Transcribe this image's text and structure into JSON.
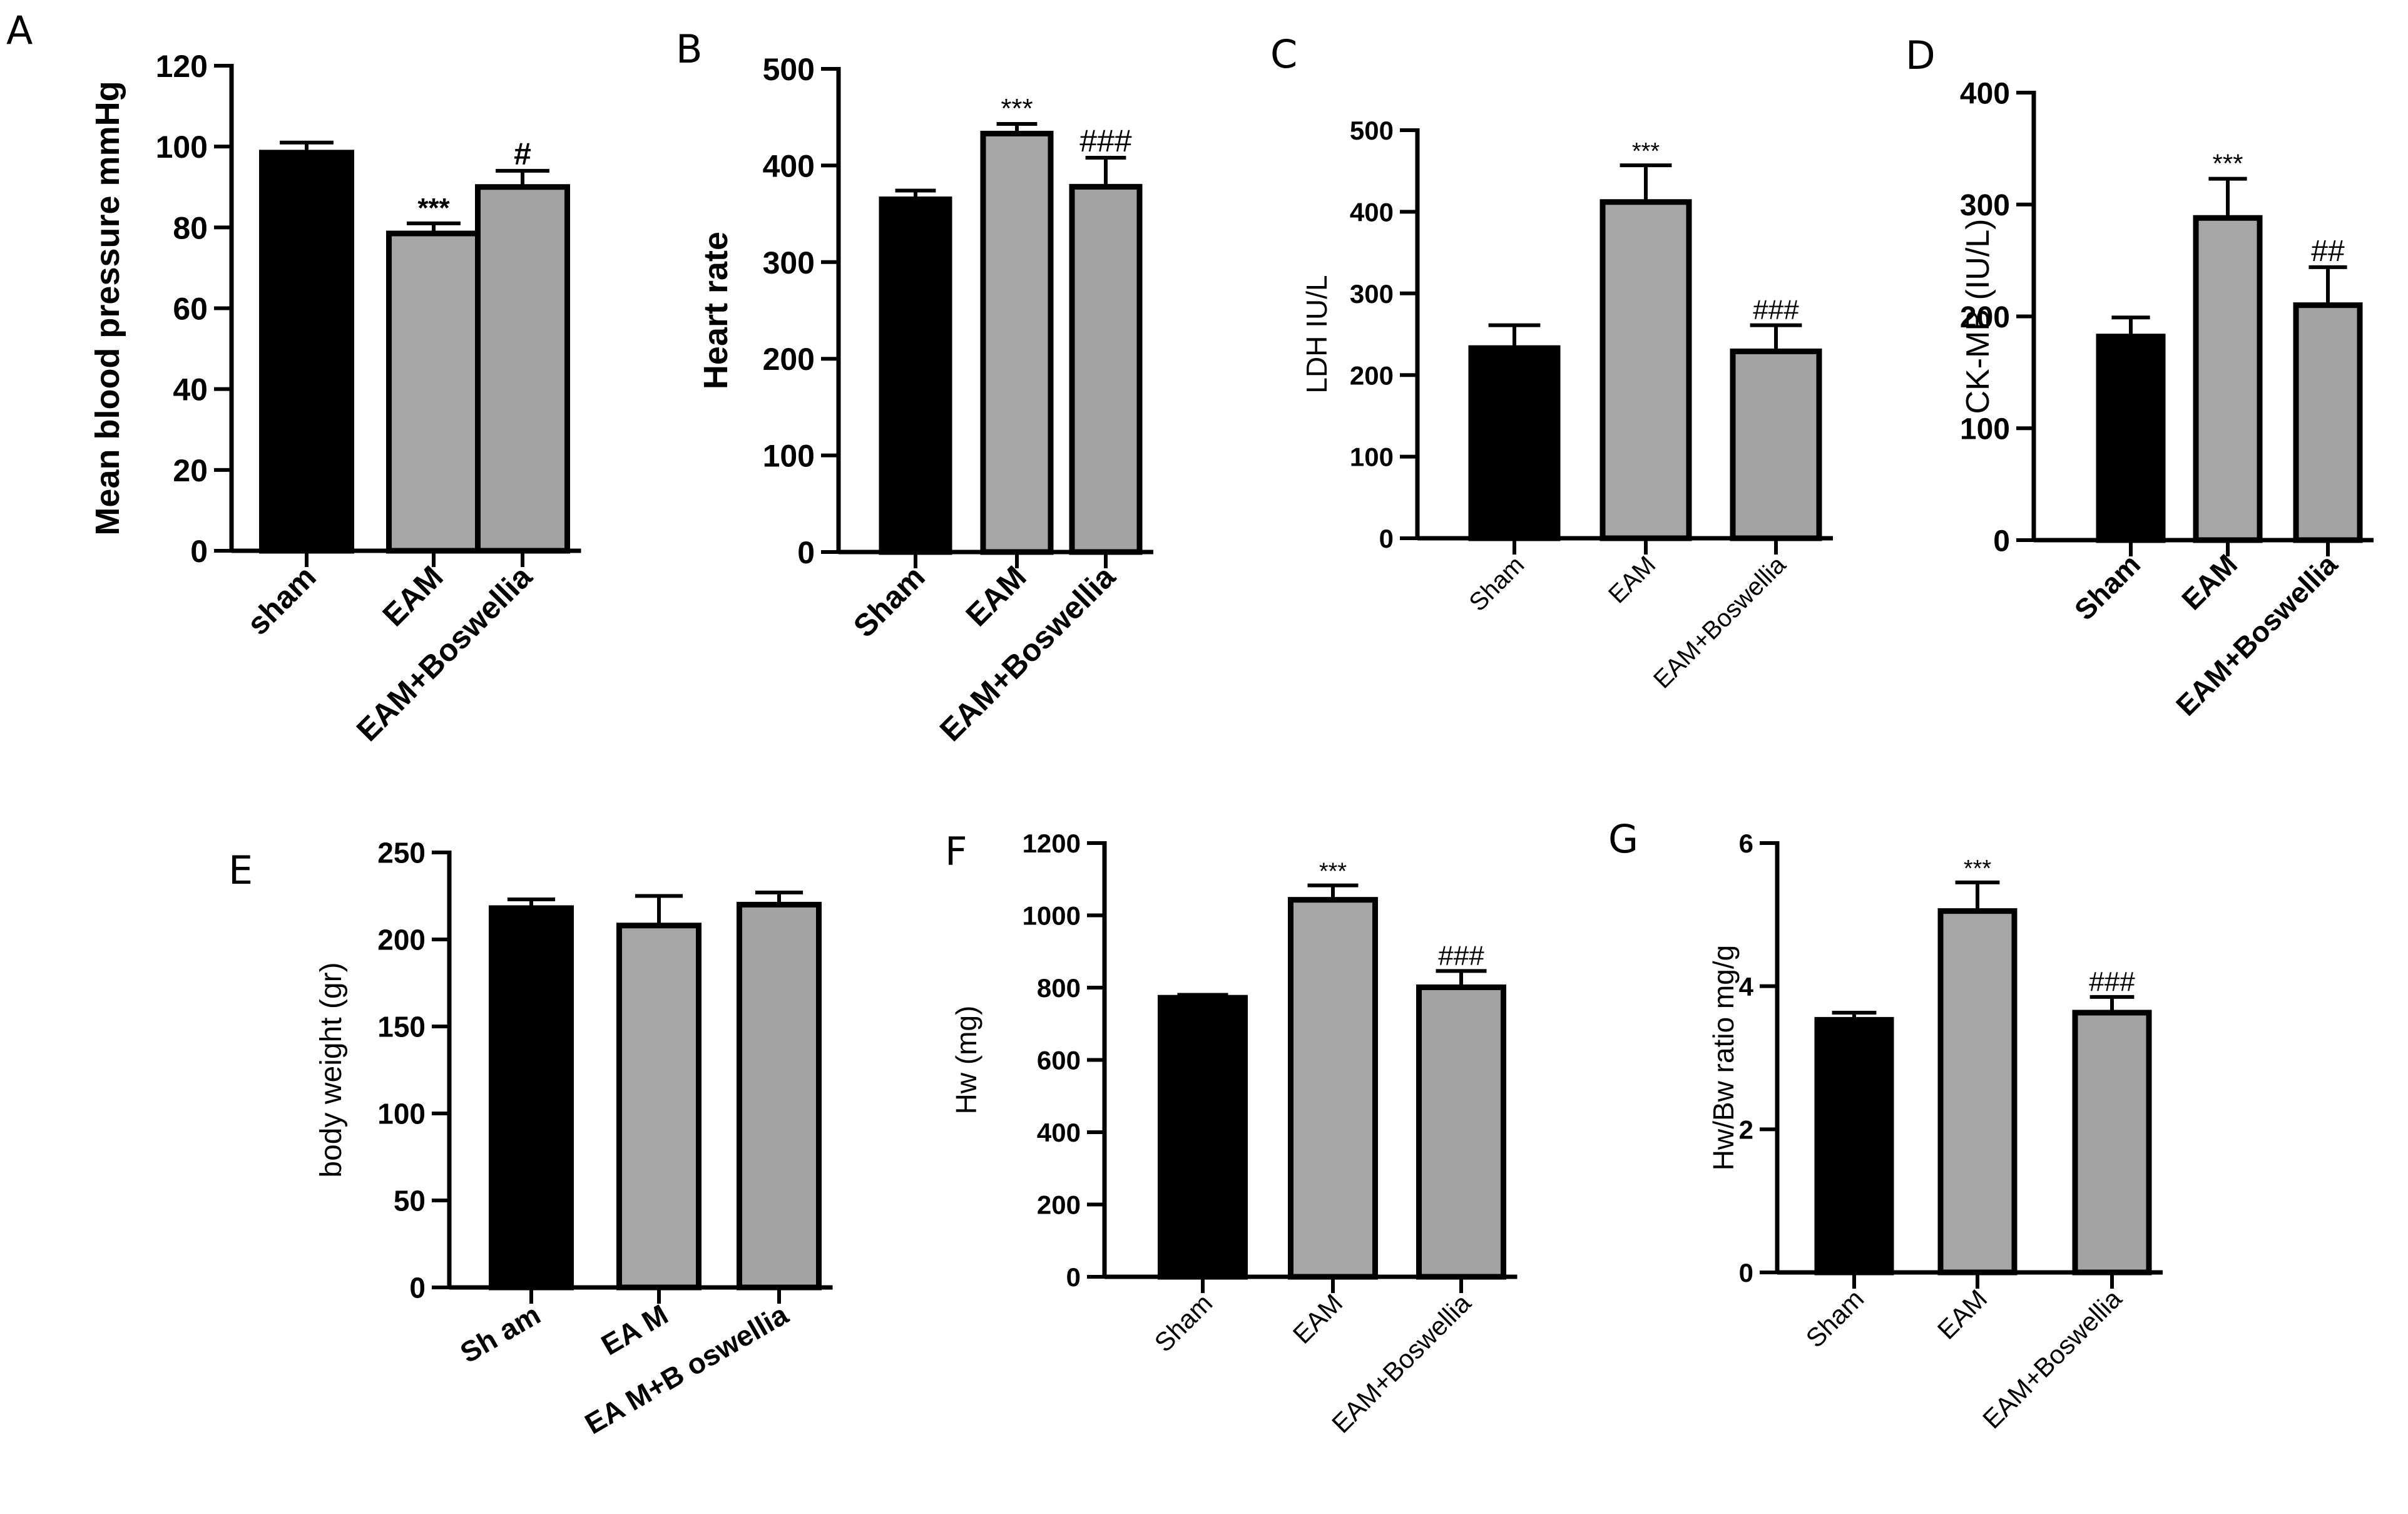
{
  "colors": {
    "sham": "#000000",
    "eam": "#a6a6a6",
    "boswellia": "#a3a3a3",
    "axis": "#000000"
  },
  "chart_data": [
    {
      "panel": "A",
      "type": "bar",
      "categories": [
        "sham",
        "EAM",
        "EAM+Boswellia"
      ],
      "values": [
        98.5,
        78.5,
        90
      ],
      "errors": [
        2.5,
        2.5,
        4
      ],
      "annotations": [
        "",
        "***",
        "#"
      ],
      "ylabel": "Mean blood pressure mmHg",
      "xlabel": "",
      "ylim": [
        0,
        120
      ],
      "yticks": [
        0,
        20,
        40,
        60,
        80,
        100,
        120
      ]
    },
    {
      "panel": "B",
      "type": "bar",
      "categories": [
        "Sham",
        "EAM",
        "EAM+Boswellia"
      ],
      "values": [
        365,
        433,
        378
      ],
      "errors": [
        9,
        10,
        30
      ],
      "annotations": [
        "",
        "***",
        "###"
      ],
      "ylabel": "Heart rate",
      "xlabel": "",
      "ylim": [
        0,
        500
      ],
      "yticks": [
        0,
        100,
        200,
        300,
        400,
        500
      ]
    },
    {
      "panel": "C",
      "type": "bar",
      "categories": [
        "Sham",
        "EAM",
        "EAM+Boswellia"
      ],
      "values": [
        233,
        412,
        229
      ],
      "errors": [
        28,
        45,
        32
      ],
      "annotations": [
        "",
        "***",
        "###"
      ],
      "ylabel": "LDH IU/L",
      "xlabel": "",
      "ylim": [
        0,
        500
      ],
      "yticks": [
        0,
        100,
        200,
        300,
        400,
        500
      ]
    },
    {
      "panel": "D",
      "type": "bar",
      "categories": [
        "Sham",
        "EAM",
        "EAM+Boswellia"
      ],
      "values": [
        182,
        288,
        210
      ],
      "errors": [
        17,
        35,
        34
      ],
      "annotations": [
        "",
        "***",
        "##"
      ],
      "ylabel": "CK-MB (IU/L)",
      "xlabel": "",
      "ylim": [
        0,
        400
      ],
      "yticks": [
        0,
        100,
        200,
        300,
        400
      ]
    },
    {
      "panel": "E",
      "type": "bar",
      "categories": [
        "Sh am",
        "EA M",
        "EA M+B oswellia"
      ],
      "values": [
        218,
        208,
        220
      ],
      "errors": [
        5,
        17,
        7
      ],
      "annotations": [
        "",
        "",
        ""
      ],
      "ylabel": "body weight (gr)",
      "xlabel": "",
      "ylim": [
        0,
        250
      ],
      "yticks": [
        0,
        50,
        100,
        150,
        200,
        250
      ]
    },
    {
      "panel": "F",
      "type": "bar",
      "categories": [
        "Sham",
        "EAM",
        "EAM+Boswellia"
      ],
      "values": [
        772,
        1043,
        801
      ],
      "errors": [
        8,
        40,
        45
      ],
      "annotations": [
        "",
        "***",
        "###"
      ],
      "ylabel": "Hw (mg)",
      "xlabel": "",
      "ylim": [
        0,
        1200
      ],
      "yticks": [
        0,
        200,
        400,
        600,
        800,
        1000,
        1200
      ]
    },
    {
      "panel": "G",
      "type": "bar",
      "categories": [
        "Sham",
        "EAM",
        "EAM+Boswellia"
      ],
      "values": [
        3.53,
        5.05,
        3.63
      ],
      "errors": [
        0.1,
        0.4,
        0.22
      ],
      "annotations": [
        "",
        "***",
        "###"
      ],
      "ylabel": "Hw/Bw ratio mg/g",
      "xlabel": "",
      "ylim": [
        0,
        6
      ],
      "yticks": [
        0,
        2,
        4,
        6
      ]
    }
  ]
}
